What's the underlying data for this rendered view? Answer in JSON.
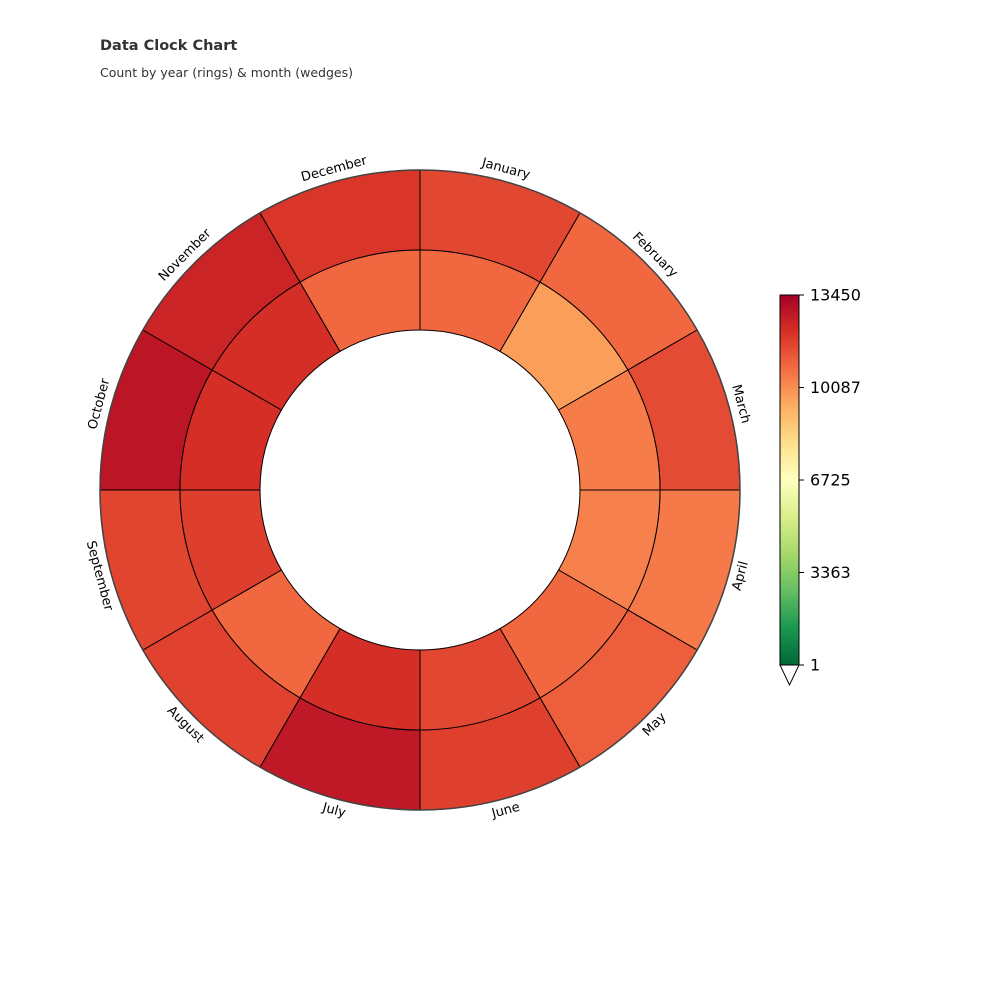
{
  "chart_data": {
    "type": "heatmap",
    "subtype": "radial-clock",
    "title": "Data Clock Chart",
    "subtitle": "Count by year (rings) & month (wedges)",
    "months": [
      "January",
      "February",
      "March",
      "April",
      "May",
      "June",
      "July",
      "August",
      "September",
      "October",
      "November",
      "December"
    ],
    "rings": [
      {
        "values": [
          11600,
          10900,
          11500,
          10500,
          11100,
          11750,
          12750,
          11700,
          11650,
          12850,
          12450,
          12000
        ]
      },
      {
        "values": [
          10900,
          9750,
          10450,
          10350,
          10900,
          11600,
          12150,
          10900,
          11800,
          12150,
          12150,
          10900
        ]
      }
    ],
    "colorbar": {
      "colormap": "RdYlGn_r",
      "min": 1,
      "max": 13450,
      "ticks": [
        1,
        3363,
        6725,
        10087,
        13450
      ],
      "extend": "min"
    },
    "colors": {
      "ring_edge": "#000000",
      "outer_border": "#444444"
    }
  }
}
